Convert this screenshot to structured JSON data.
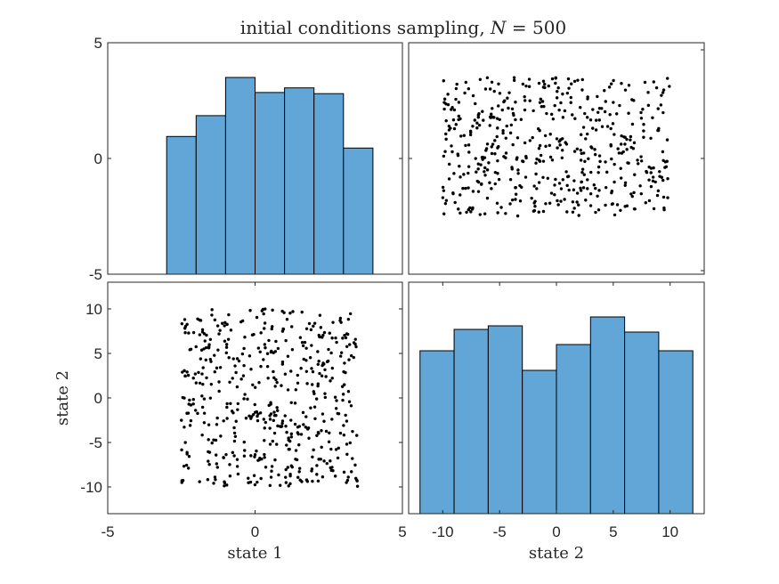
{
  "title": "initial conditions sampling,",
  "title_math": {
    "var": "N",
    "eq": "= 500"
  },
  "colors": {
    "bar_fill": "#61a6d6",
    "bar_edge": "#000000",
    "point": "#000000",
    "axis": "#262626"
  },
  "chart_data": [
    {
      "type": "bar",
      "subplot": "top-left",
      "description": "histogram of state 1",
      "bin_edges": [
        -3,
        -2,
        -1,
        0,
        1,
        2,
        3,
        4
      ],
      "values": [
        0.95,
        1.85,
        3.5,
        2.85,
        3.05,
        2.8,
        0.45
      ],
      "xlim": [
        -5,
        5
      ],
      "ylim": [
        -5,
        5
      ],
      "yticks": [
        -5,
        0,
        5
      ],
      "ytick_labels": [
        "-5",
        "0",
        "5"
      ],
      "xticks": [],
      "grid": false
    },
    {
      "type": "scatter",
      "subplot": "top-right",
      "x_variable": "state 2",
      "y_variable": "state 1",
      "n_points": 500,
      "x_range_of_points": [
        -10,
        10
      ],
      "y_range_of_points": [
        -2.5,
        3.5
      ],
      "xlim": [
        -13,
        13
      ],
      "ylim": [
        -5,
        5
      ],
      "xticks": [],
      "yticks": [],
      "grid": false
    },
    {
      "type": "scatter",
      "subplot": "bottom-left",
      "x_variable": "state 1",
      "y_variable": "state 2",
      "n_points": 500,
      "x_range_of_points": [
        -2.5,
        3.5
      ],
      "y_range_of_points": [
        -10,
        10
      ],
      "xlim": [
        -5,
        5
      ],
      "ylim": [
        -13,
        13
      ],
      "xticks": [
        -5,
        0,
        5
      ],
      "xtick_labels": [
        "-5",
        "0",
        "5"
      ],
      "yticks": [
        -10,
        -5,
        0,
        5,
        10
      ],
      "ytick_labels": [
        "-10",
        "-5",
        "0",
        "5",
        "10"
      ],
      "xlabel": "state 1",
      "ylabel": "state 2",
      "grid": false
    },
    {
      "type": "bar",
      "subplot": "bottom-right",
      "description": "histogram of state 2",
      "bin_edges": [
        -12,
        -9,
        -6,
        -3,
        0,
        3,
        6,
        9,
        12
      ],
      "values": [
        5.3,
        7.7,
        8.1,
        3.1,
        6.0,
        9.1,
        7.4,
        5.3
      ],
      "xlim": [
        -13,
        13
      ],
      "ylim": [
        -13,
        13
      ],
      "xticks": [
        -10,
        -5,
        0,
        5,
        10
      ],
      "xtick_labels": [
        "-10",
        "-5",
        "0",
        "5",
        "10"
      ],
      "yticks": [],
      "xlabel": "state 2",
      "grid": false
    }
  ]
}
